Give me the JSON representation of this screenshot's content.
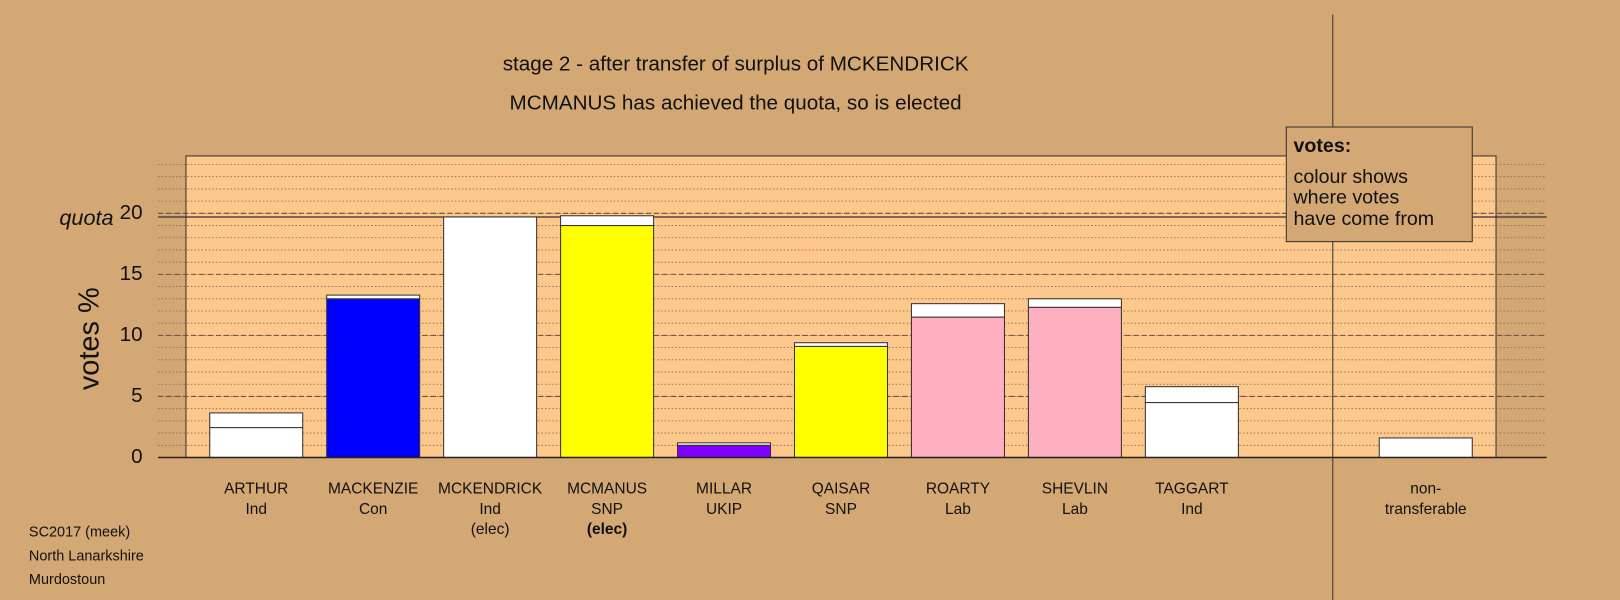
{
  "chart_data": {
    "type": "stacked_bar",
    "title": "stage 2 - after transfer of surplus of MCKENDRICK",
    "subtitle": "MCMANUS has achieved the quota, so is elected",
    "ylabel": "votes %",
    "quota_label": "quota",
    "quota": 19.7,
    "categories": [
      "ARTHUR",
      "MACKENZIE",
      "MCKENDRICK",
      "MCMANUS",
      "MILLAR",
      "QAISAR",
      "ROARTY",
      "SHEVLIN",
      "TAGGART",
      null,
      "non-"
    ],
    "parties": [
      "Ind",
      "Con",
      "Ind",
      "SNP",
      "UKIP",
      "SNP",
      "Lab",
      "Lab",
      "Ind",
      null,
      "transferable"
    ],
    "notes": [
      null,
      null,
      "(elec)",
      "(elec)",
      null,
      null,
      null,
      null,
      null,
      null,
      null
    ],
    "bold_note_index": 3,
    "series": [
      {
        "colors": [
          "#ffffff",
          "#0000ff",
          "#ffffff",
          "#ffff00",
          "#8000ff",
          "#ffff00",
          "#ffb0c0",
          "#ffb0c0",
          "#ffffff",
          null,
          "#ffffff"
        ],
        "values": [
          2.45,
          13.0,
          19.7,
          19.0,
          1.0,
          9.1,
          11.5,
          12.3,
          4.5,
          null,
          1.6
        ]
      },
      {
        "color": "#ffffff",
        "values": [
          1.2,
          0.3,
          null,
          0.8,
          0.2,
          0.3,
          1.1,
          0.7,
          1.3,
          null,
          null
        ]
      }
    ],
    "ylim": [
      0,
      24.7
    ],
    "yticks": [
      0,
      5,
      10,
      15,
      20
    ],
    "minor_grid_step": 1,
    "grid": true,
    "legend_box": {
      "title": "votes:",
      "lines": [
        "colour shows",
        "where votes",
        "have come from"
      ]
    },
    "footer": [
      "SC2017 (meek)",
      "North Lanarkshire",
      "Murdostoun"
    ]
  }
}
